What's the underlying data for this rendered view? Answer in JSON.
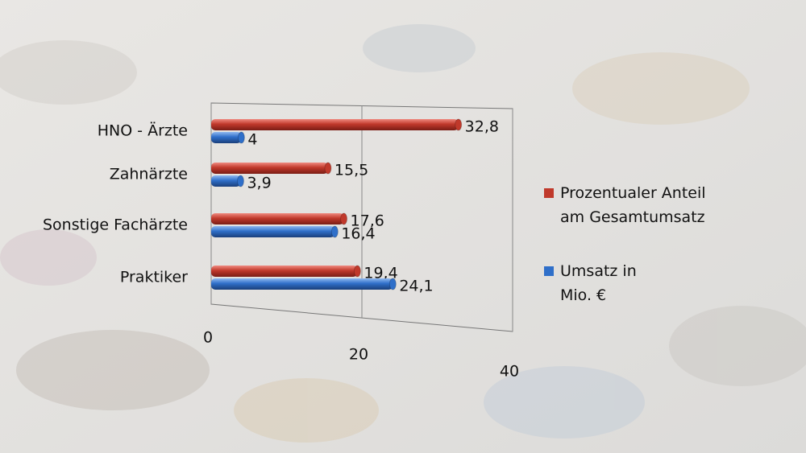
{
  "chart_data": {
    "type": "bar",
    "orientation": "horizontal",
    "categories": [
      "HNO - Ärzte",
      "Zahnärzte",
      "Sonstige Fachärzte",
      "Praktiker"
    ],
    "series": [
      {
        "name": "Prozentualer Anteil am Gesamtumsatz",
        "color": "#c0392b",
        "values": [
          32.8,
          15.5,
          17.6,
          19.4
        ],
        "value_labels": [
          "32,8",
          "15,5",
          "17,6",
          "19,4"
        ]
      },
      {
        "name": "Umsatz in Mio. €",
        "color": "#2f6fc9",
        "values": [
          4,
          3.9,
          16.4,
          24.1
        ],
        "value_labels": [
          "4",
          "3,9",
          "16,4",
          "24,1"
        ]
      }
    ],
    "xlim": [
      0,
      40
    ],
    "xticks": [
      0,
      20,
      40
    ],
    "grid": true,
    "legend": "right"
  }
}
